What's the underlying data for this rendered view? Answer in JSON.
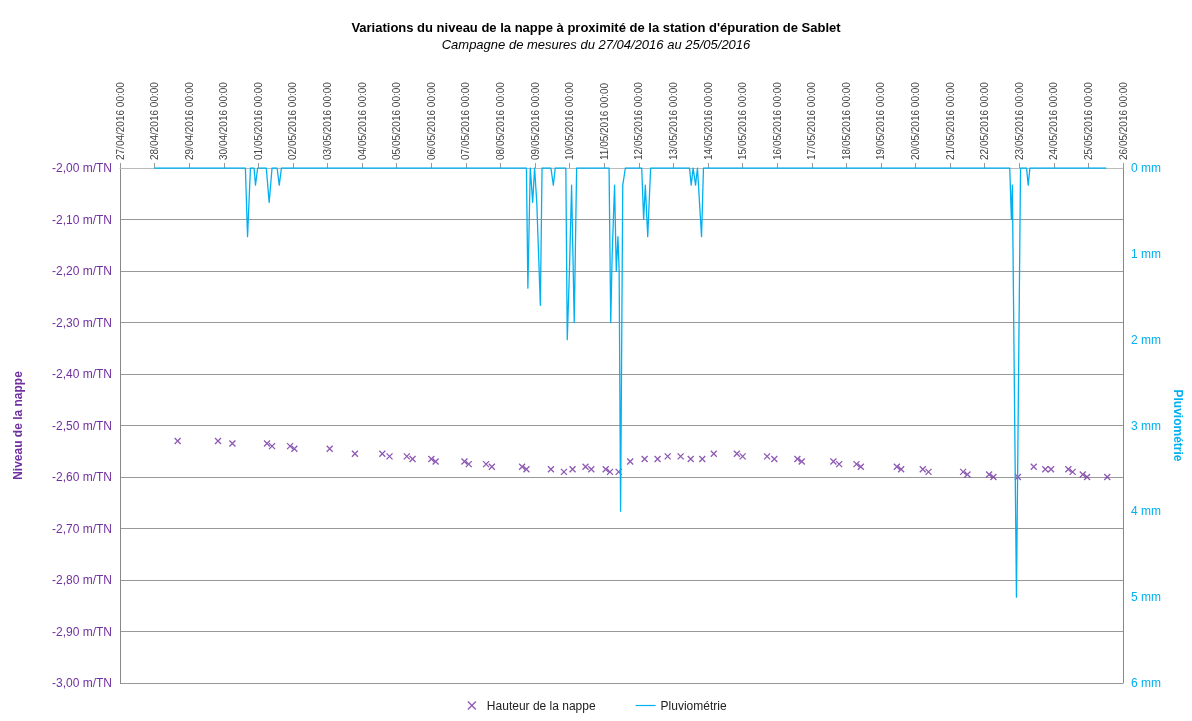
{
  "chart_data": {
    "type": "scatter",
    "title": "Variations du niveau de la nappe à proximité de la station d'épuration de Sablet",
    "subtitle": "Campagne de mesures du 27/04/2016 au 25/05/2016",
    "ylabel": "Niveau de la nappe",
    "y2label": "Pluviométrie",
    "xlim": [
      "2016-04-27",
      "2016-05-26"
    ],
    "xticks": [
      {
        "value": "2016-04-27",
        "label": "27/04/2016 00:00"
      },
      {
        "value": "2016-04-28",
        "label": "28/04/2016 00:00"
      },
      {
        "value": "2016-04-29",
        "label": "29/04/2016 00:00"
      },
      {
        "value": "2016-04-30",
        "label": "30/04/2016 00:00"
      },
      {
        "value": "2016-05-01",
        "label": "01/05/2016 00:00"
      },
      {
        "value": "2016-05-02",
        "label": "02/05/2016 00:00"
      },
      {
        "value": "2016-05-03",
        "label": "03/05/2016 00:00"
      },
      {
        "value": "2016-05-04",
        "label": "04/05/2016 00:00"
      },
      {
        "value": "2016-05-05",
        "label": "05/05/2016 00:00"
      },
      {
        "value": "2016-05-06",
        "label": "06/05/2016 00:00"
      },
      {
        "value": "2016-05-07",
        "label": "07/05/2016 00:00"
      },
      {
        "value": "2016-05-08",
        "label": "08/05/2016 00:00"
      },
      {
        "value": "2016-05-09",
        "label": "09/05/2016 00:00"
      },
      {
        "value": "2016-05-10",
        "label": "10/05/2016 00:00"
      },
      {
        "value": "2016-05-11",
        "label": "11/05/2016 00:00"
      },
      {
        "value": "2016-05-12",
        "label": "12/05/2016 00:00"
      },
      {
        "value": "2016-05-13",
        "label": "13/05/2016 00:00"
      },
      {
        "value": "2016-05-14",
        "label": "14/05/2016 00:00"
      },
      {
        "value": "2016-05-15",
        "label": "15/05/2016 00:00"
      },
      {
        "value": "2016-05-16",
        "label": "16/05/2016 00:00"
      },
      {
        "value": "2016-05-17",
        "label": "17/05/2016 00:00"
      },
      {
        "value": "2016-05-18",
        "label": "18/05/2016 00:00"
      },
      {
        "value": "2016-05-19",
        "label": "19/05/2016 00:00"
      },
      {
        "value": "2016-05-20",
        "label": "20/05/2016 00:00"
      },
      {
        "value": "2016-05-21",
        "label": "21/05/2016 00:00"
      },
      {
        "value": "2016-05-22",
        "label": "22/05/2016 00:00"
      },
      {
        "value": "2016-05-23",
        "label": "23/05/2016 00:00"
      },
      {
        "value": "2016-05-24",
        "label": "24/05/2016 00:00"
      },
      {
        "value": "2016-05-25",
        "label": "25/05/2016 00:00"
      },
      {
        "value": "2016-05-26",
        "label": "26/05/2016 00:00"
      }
    ],
    "ylim": [
      -3,
      -2
    ],
    "yticks": [
      {
        "value": -3,
        "label": "-3,00 m/TN"
      },
      {
        "value": -2.9,
        "label": "-2,90 m/TN"
      },
      {
        "value": -2.8,
        "label": "-2,80 m/TN"
      },
      {
        "value": -2.7,
        "label": "-2,70 m/TN"
      },
      {
        "value": -2.6,
        "label": "-2,60 m/TN"
      },
      {
        "value": -2.5,
        "label": "-2,50 m/TN"
      },
      {
        "value": -2.4,
        "label": "-2,40 m/TN"
      },
      {
        "value": -2.3,
        "label": "-2,30 m/TN"
      },
      {
        "value": -2.2,
        "label": "-2,20 m/TN"
      },
      {
        "value": -2.1,
        "label": "-2,10 m/TN"
      },
      {
        "value": -2,
        "label": "-2,00 m/TN"
      }
    ],
    "y2lim": [
      6,
      0
    ],
    "y2ticks": [
      {
        "value": 0,
        "label": "0 mm"
      },
      {
        "value": 1,
        "label": "1 mm"
      },
      {
        "value": 2,
        "label": "2 mm"
      },
      {
        "value": 3,
        "label": "3 mm"
      },
      {
        "value": 4,
        "label": "4 mm"
      },
      {
        "value": 5,
        "label": "5 mm"
      },
      {
        "value": 6,
        "label": "6 mm"
      }
    ],
    "grid": "y",
    "legend": "bottom",
    "series": [
      {
        "name": "Hauteur de la nappe",
        "marker": "cross",
        "color": "#7030a0",
        "x": [
          "2016-04-28T16:00",
          "2016-04-29T20:00",
          "2016-04-30T06:00",
          "2016-05-01T06:00",
          "2016-05-01T09:30",
          "2016-05-01T22:00",
          "2016-05-02T01:00",
          "2016-05-03T01:30",
          "2016-05-03T19:00",
          "2016-05-04T14:00",
          "2016-05-04T19:00",
          "2016-05-05T07:00",
          "2016-05-05T11:00",
          "2016-05-06T00:00",
          "2016-05-06T03:00",
          "2016-05-06T23:00",
          "2016-05-07T02:00",
          "2016-05-07T14:00",
          "2016-05-07T18:00",
          "2016-05-08T15:00",
          "2016-05-08T18:00",
          "2016-05-09T11:00",
          "2016-05-09T20:00",
          "2016-05-10T02:00",
          "2016-05-10T11:00",
          "2016-05-10T15:00",
          "2016-05-11T01:00",
          "2016-05-11T04:00",
          "2016-05-11T10:00",
          "2016-05-11T18:00",
          "2016-05-12T04:00",
          "2016-05-12T13:00",
          "2016-05-12T20:00",
          "2016-05-13T05:00",
          "2016-05-13T12:00",
          "2016-05-13T20:00",
          "2016-05-14T04:00",
          "2016-05-14T20:00",
          "2016-05-15T00:00",
          "2016-05-15T17:00",
          "2016-05-15T22:00",
          "2016-05-16T14:00",
          "2016-05-16T17:00",
          "2016-05-17T15:00",
          "2016-05-17T19:00",
          "2016-05-18T07:00",
          "2016-05-18T10:00",
          "2016-05-19T11:00",
          "2016-05-19T14:00",
          "2016-05-20T05:00",
          "2016-05-20T09:00",
          "2016-05-21T09:00",
          "2016-05-21T12:00",
          "2016-05-22T03:00",
          "2016-05-22T06:00",
          "2016-05-22T23:00",
          "2016-05-23T10:00",
          "2016-05-23T18:00",
          "2016-05-23T22:00",
          "2016-05-24T10:00",
          "2016-05-24T13:00",
          "2016-05-24T20:00",
          "2016-05-24T23:00",
          "2016-05-25T13:00"
        ],
        "values": [
          -2.53,
          -2.53,
          -2.535,
          -2.535,
          -2.54,
          -2.54,
          -2.545,
          -2.545,
          -2.555,
          -2.555,
          -2.56,
          -2.56,
          -2.565,
          -2.565,
          -2.57,
          -2.57,
          -2.575,
          -2.575,
          -2.58,
          -2.58,
          -2.585,
          -2.585,
          -2.59,
          -2.585,
          -2.58,
          -2.585,
          -2.585,
          -2.59,
          -2.59,
          -2.57,
          -2.565,
          -2.565,
          -2.56,
          -2.56,
          -2.565,
          -2.565,
          -2.555,
          -2.555,
          -2.56,
          -2.56,
          -2.565,
          -2.565,
          -2.57,
          -2.57,
          -2.575,
          -2.575,
          -2.58,
          -2.58,
          -2.585,
          -2.585,
          -2.59,
          -2.59,
          -2.595,
          -2.595,
          -2.6,
          -2.6,
          -2.58,
          -2.585,
          -2.585,
          -2.585,
          -2.59,
          -2.595,
          -2.6,
          -2.6
        ]
      },
      {
        "name": "Pluviométrie",
        "type": "line",
        "axis": "y2",
        "color": "#00b0f0",
        "x": [
          "2016-04-28T00:00",
          "2016-04-30T15:00",
          "2016-04-30T16:30",
          "2016-04-30T18:30",
          "2016-04-30T21:00",
          "2016-04-30T22:00",
          "2016-04-30T23:30",
          "2016-05-01T05:30",
          "2016-05-01T07:30",
          "2016-05-01T09:30",
          "2016-05-01T13:00",
          "2016-05-01T14:30",
          "2016-05-01T16:00",
          "2016-05-08T18:00",
          "2016-05-08T19:00",
          "2016-05-08T20:40",
          "2016-05-08T22:20",
          "2016-05-08T23:40",
          "2016-05-09T01:10",
          "2016-05-09T03:40",
          "2016-05-09T04:50",
          "2016-05-09T11:00",
          "2016-05-09T12:40",
          "2016-05-09T14:00",
          "2016-05-09T21:20",
          "2016-05-09T22:20",
          "2016-05-09T23:50",
          "2016-05-10T01:20",
          "2016-05-10T03:10",
          "2016-05-10T04:50",
          "2016-05-11T03:20",
          "2016-05-11T04:30",
          "2016-05-11T05:30",
          "2016-05-11T07:10",
          "2016-05-11T08:20",
          "2016-05-11T09:30",
          "2016-05-11T10:20",
          "2016-05-11T11:20",
          "2016-05-11T12:50",
          "2016-05-11T14:40",
          "2016-05-12T02:00",
          "2016-05-12T03:20",
          "2016-05-12T04:30",
          "2016-05-12T06:10",
          "2016-05-12T08:10",
          "2016-05-13T11:10",
          "2016-05-13T12:20",
          "2016-05-13T13:40",
          "2016-05-13T15:20",
          "2016-05-13T16:40",
          "2016-05-13T19:30",
          "2016-05-13T20:50",
          "2016-05-22T17:20",
          "2016-05-22T18:30",
          "2016-05-22T19:10",
          "2016-05-22T22:00",
          "2016-05-23T00:50",
          "2016-05-23T05:00",
          "2016-05-23T06:10",
          "2016-05-23T07:20",
          "2016-05-25T12:00"
        ],
        "values": [
          0,
          0,
          0.8,
          0,
          0,
          0.2,
          0,
          0,
          0.4,
          0,
          0,
          0.2,
          0,
          0,
          1.4,
          0,
          0.4,
          0,
          0.4,
          1.6,
          0,
          0,
          0.2,
          0,
          0,
          2.0,
          1.2,
          0.2,
          1.8,
          0,
          0,
          1.8,
          1.0,
          0.2,
          1.2,
          0.8,
          1.2,
          4.0,
          0.2,
          0,
          0,
          0.6,
          0.2,
          0.8,
          0,
          0,
          0.2,
          0,
          0.2,
          0,
          0.8,
          0,
          0,
          0.6,
          0.2,
          5.0,
          0,
          0,
          0.2,
          0,
          0
        ]
      }
    ]
  }
}
